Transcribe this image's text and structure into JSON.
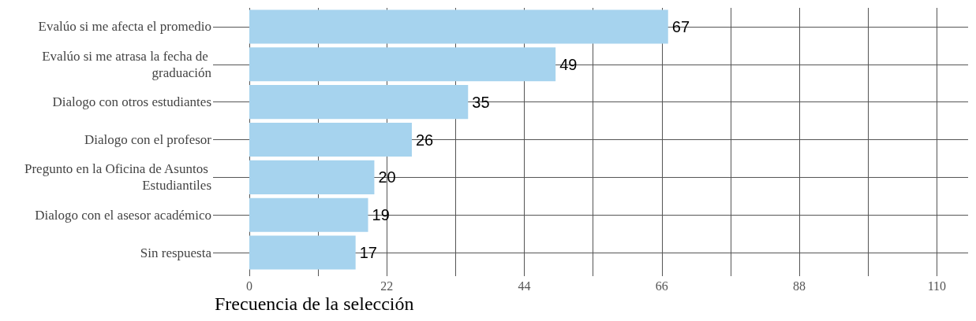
{
  "chart_data": {
    "type": "bar",
    "orientation": "horizontal",
    "xlabel": "Frecuencia de la selección",
    "categories": [
      "Evalúo si me afecta el promedio",
      "Evalúo si me atrasa la fecha de graduación",
      "Dialogo con otros estudiantes",
      "Dialogo con el profesor",
      "Pregunto en la Oficina de Asuntos Estudiantiles",
      "Dialogo con el asesor académico",
      "Sin respuesta"
    ],
    "values": [
      67,
      49,
      35,
      26,
      20,
      19,
      17
    ],
    "color": "#a6d3ee",
    "data_labels": true,
    "grid": true,
    "xlim": [
      0,
      115
    ],
    "xticks": [
      0,
      {
        "value": 11,
        "label": null
      },
      22,
      {
        "value": 33,
        "label": null
      },
      44,
      {
        "value": 55,
        "label": null
      },
      66,
      {
        "value": 77,
        "label": null
      },
      88,
      {
        "value": 99,
        "label": null
      },
      110
    ]
  }
}
